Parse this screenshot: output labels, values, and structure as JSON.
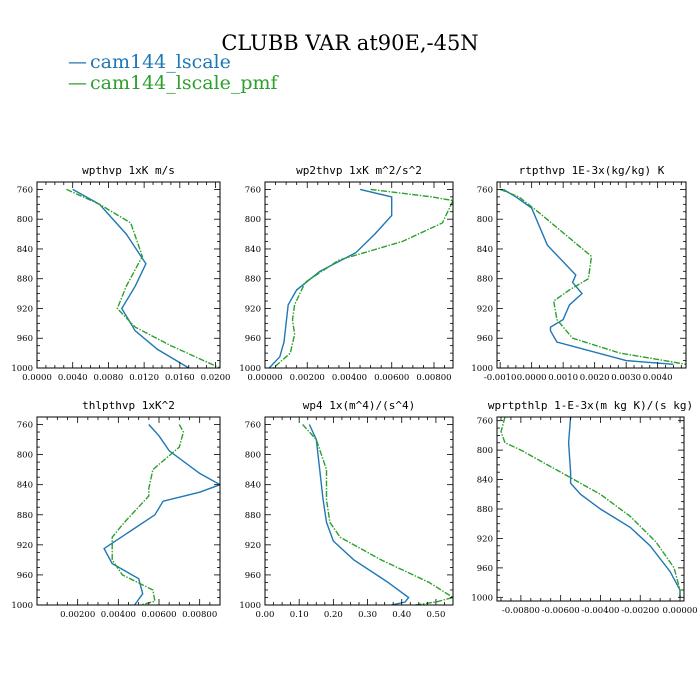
{
  "title": "CLUBB VAR at90E,-45N",
  "colors": {
    "series0": "#1f77b4",
    "series1": "#2ca02c"
  },
  "legend": [
    {
      "marker": "—",
      "label": "cam144_lscale"
    },
    {
      "marker": "—",
      "label": "cam144_lscale_pmf"
    }
  ],
  "chart_data": [
    {
      "type": "line",
      "title": "wpthvp 1xK m/s",
      "xlim": [
        0.0,
        0.0205
      ],
      "ylim": [
        750,
        1000
      ],
      "y_inverted": true,
      "xticks": [
        "0.0000",
        "0.0040",
        "0.0080",
        "0.0120",
        "0.0160",
        "0.0200"
      ],
      "xtick_values": [
        0.0,
        0.004,
        0.008,
        0.012,
        0.016,
        0.02
      ],
      "yticks": [
        "760",
        "800",
        "840",
        "880",
        "920",
        "960",
        "1000"
      ],
      "ytick_values": [
        760,
        800,
        840,
        880,
        920,
        960,
        1000
      ],
      "series": [
        {
          "name": "cam144_lscale",
          "x": [
            0.004,
            0.007,
            0.01,
            0.0122,
            0.011,
            0.0095,
            0.011,
            0.0135,
            0.017
          ],
          "y": [
            760,
            780,
            820,
            860,
            890,
            920,
            950,
            975,
            1000
          ]
        },
        {
          "name": "cam144_lscale_pmf",
          "x": [
            0.0033,
            0.007,
            0.0105,
            0.0118,
            0.01,
            0.009,
            0.011,
            0.015,
            0.0205
          ],
          "y": [
            760,
            780,
            805,
            850,
            890,
            920,
            945,
            970,
            1000
          ]
        }
      ]
    },
    {
      "type": "line",
      "title": "wp2thvp 1xK m^2/s^2",
      "xlim": [
        0.0,
        0.0089
      ],
      "ylim": [
        750,
        1000
      ],
      "y_inverted": true,
      "xticks": [
        "0.00000",
        "0.00200",
        "0.00400",
        "0.00600",
        "0.00800"
      ],
      "xtick_values": [
        0.0,
        0.002,
        0.004,
        0.006,
        0.008
      ],
      "yticks": [
        "760",
        "800",
        "840",
        "880",
        "920",
        "960",
        "1000"
      ],
      "ytick_values": [
        760,
        800,
        840,
        880,
        920,
        960,
        1000
      ],
      "series": [
        {
          "name": "cam144_lscale",
          "x": [
            0.0045,
            0.006,
            0.006,
            0.0052,
            0.0043,
            0.0026,
            0.0015,
            0.0011,
            0.001,
            0.0009,
            0.0007,
            0.0002
          ],
          "y": [
            760,
            770,
            795,
            820,
            845,
            870,
            895,
            915,
            940,
            965,
            985,
            1000
          ]
        },
        {
          "name": "cam144_lscale_pmf",
          "x": [
            0.005,
            0.0079,
            0.0089,
            0.0084,
            0.0065,
            0.0035,
            0.0019,
            0.0014,
            0.0013,
            0.0014,
            0.0012,
            0.0004
          ],
          "y": [
            760,
            770,
            775,
            805,
            830,
            855,
            885,
            915,
            935,
            955,
            980,
            1000
          ]
        }
      ]
    },
    {
      "type": "line",
      "title": "rtpthvp 1E-3x(kg/kg) K",
      "xlim": [
        -0.0011,
        0.0049
      ],
      "ylim": [
        750,
        1000
      ],
      "y_inverted": true,
      "xticks": [
        "-0.0010",
        "0.0000",
        "0.0010",
        "0.0020",
        "0.0030",
        "0.0040"
      ],
      "xtick_values": [
        -0.001,
        0.0,
        0.001,
        0.002,
        0.003,
        0.004
      ],
      "yticks": [
        "760",
        "800",
        "840",
        "880",
        "920",
        "960",
        "1000"
      ],
      "ytick_values": [
        760,
        800,
        840,
        880,
        920,
        960,
        1000
      ],
      "series": [
        {
          "name": "cam144_lscale",
          "x": [
            -0.0009,
            -0.0005,
            0.0,
            0.0005,
            0.0014,
            0.0013,
            0.0016,
            0.0012,
            0.001,
            0.0006,
            0.0006,
            0.0008,
            0.003,
            0.0045
          ],
          "y": [
            760,
            770,
            785,
            835,
            875,
            885,
            900,
            915,
            935,
            945,
            950,
            965,
            990,
            995
          ]
        },
        {
          "name": "cam144_lscale_pmf",
          "x": [
            -0.001,
            -0.0004,
            0.0002,
            0.0019,
            0.0018,
            0.0012,
            0.0007,
            0.0008,
            0.0013,
            0.0028,
            0.0049
          ],
          "y": [
            760,
            770,
            790,
            850,
            880,
            895,
            910,
            935,
            960,
            980,
            995
          ]
        }
      ]
    },
    {
      "type": "line",
      "title": "thlpthvp 1xK^2",
      "xlim": [
        0.0,
        0.009
      ],
      "ylim": [
        750,
        1000
      ],
      "y_inverted": true,
      "xticks": [
        "0.00200",
        "0.00400",
        "0.00600",
        "0.00800"
      ],
      "xtick_values": [
        0.002,
        0.004,
        0.006,
        0.008
      ],
      "yticks": [
        "760",
        "800",
        "840",
        "880",
        "920",
        "960",
        "1000"
      ],
      "ytick_values": [
        760,
        800,
        840,
        880,
        920,
        960,
        1000
      ],
      "series": [
        {
          "name": "cam144_lscale",
          "x": [
            0.0055,
            0.006,
            0.0065,
            0.008,
            0.009,
            0.008,
            0.0062,
            0.0058,
            0.0033,
            0.0037,
            0.005,
            0.0052,
            0.0048
          ],
          "y": [
            760,
            775,
            795,
            825,
            840,
            850,
            862,
            880,
            925,
            945,
            965,
            985,
            1000
          ]
        },
        {
          "name": "cam144_lscale_pmf",
          "x": [
            0.007,
            0.0072,
            0.007,
            0.0057,
            0.0055,
            0.0055,
            0.0043,
            0.0037,
            0.0037,
            0.0042,
            0.0057,
            0.0058,
            0.0051
          ],
          "y": [
            760,
            770,
            790,
            820,
            845,
            855,
            890,
            910,
            940,
            960,
            980,
            995,
            1000
          ]
        }
      ]
    },
    {
      "type": "line",
      "title": "wp4 1x(m^4)/(s^4)",
      "xlim": [
        0.0,
        0.55
      ],
      "ylim": [
        750,
        1000
      ],
      "y_inverted": true,
      "xticks": [
        "0.00",
        "0.10",
        "0.20",
        "0.30",
        "0.40",
        "0.50"
      ],
      "xtick_values": [
        0.0,
        0.1,
        0.2,
        0.3,
        0.4,
        0.5
      ],
      "yticks": [
        "760",
        "800",
        "840",
        "880",
        "920",
        "960",
        "1000"
      ],
      "ytick_values": [
        760,
        800,
        840,
        880,
        920,
        960,
        1000
      ],
      "series": [
        {
          "name": "cam144_lscale",
          "x": [
            0.13,
            0.15,
            0.16,
            0.17,
            0.18,
            0.2,
            0.26,
            0.36,
            0.42,
            0.41,
            0.37
          ],
          "y": [
            760,
            780,
            820,
            860,
            890,
            915,
            940,
            970,
            990,
            996,
            1000
          ]
        },
        {
          "name": "cam144_lscale_pmf",
          "x": [
            0.11,
            0.15,
            0.18,
            0.18,
            0.19,
            0.22,
            0.34,
            0.48,
            0.55,
            0.5,
            0.44
          ],
          "y": [
            760,
            780,
            820,
            860,
            890,
            910,
            940,
            970,
            990,
            996,
            1000
          ]
        }
      ]
    },
    {
      "type": "line",
      "title": "wprtpthlp 1-E-3x(m kg K)/(s kg)",
      "xlim": [
        -0.0092,
        0.0002
      ],
      "ylim": [
        755,
        1005
      ],
      "y_inverted": true,
      "xticks": [
        "-0.00800",
        "-0.00600",
        "-0.00400",
        "-0.00200",
        "0.00000"
      ],
      "xtick_values": [
        -0.008,
        -0.006,
        -0.004,
        -0.002,
        0.0
      ],
      "yticks": [
        "760",
        "800",
        "840",
        "880",
        "920",
        "960",
        "1000"
      ],
      "ytick_values": [
        760,
        800,
        840,
        880,
        920,
        960,
        1000
      ],
      "series": [
        {
          "name": "cam144_lscale",
          "x": [
            -0.0055,
            -0.0056,
            -0.0055,
            -0.0055,
            -0.005,
            -0.004,
            -0.0025,
            -0.0015,
            -0.0005,
            0.0,
            0.0
          ],
          "y": [
            755,
            790,
            830,
            845,
            860,
            880,
            905,
            930,
            965,
            990,
            1000
          ]
        },
        {
          "name": "cam144_lscale_pmf",
          "x": [
            -0.0088,
            -0.009,
            -0.0088,
            -0.008,
            -0.006,
            -0.004,
            -0.0025,
            -0.0012,
            -0.0003,
            0.0,
            0.0
          ],
          "y": [
            755,
            775,
            790,
            800,
            830,
            860,
            890,
            925,
            960,
            990,
            1000
          ]
        }
      ]
    }
  ]
}
